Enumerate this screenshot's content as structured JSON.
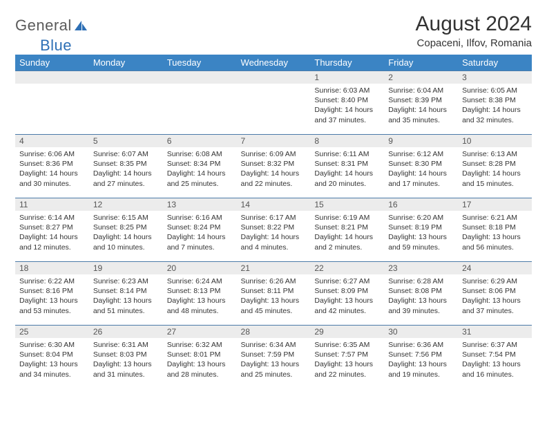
{
  "logo": {
    "general": "General",
    "blue": "Blue"
  },
  "title": "August 2024",
  "location": "Copaceni, Ilfov, Romania",
  "colors": {
    "header_bg": "#3b84c4",
    "header_text": "#ffffff",
    "daynum_bg": "#ececec",
    "row_border": "#4a7aa8",
    "text": "#333333",
    "logo_gray": "#5a5a5a",
    "logo_blue": "#2d6fb5"
  },
  "weekdays": [
    "Sunday",
    "Monday",
    "Tuesday",
    "Wednesday",
    "Thursday",
    "Friday",
    "Saturday"
  ],
  "weeks": [
    [
      null,
      null,
      null,
      null,
      {
        "d": "1",
        "sr": "Sunrise: 6:03 AM",
        "ss": "Sunset: 8:40 PM",
        "dl1": "Daylight: 14 hours",
        "dl2": "and 37 minutes."
      },
      {
        "d": "2",
        "sr": "Sunrise: 6:04 AM",
        "ss": "Sunset: 8:39 PM",
        "dl1": "Daylight: 14 hours",
        "dl2": "and 35 minutes."
      },
      {
        "d": "3",
        "sr": "Sunrise: 6:05 AM",
        "ss": "Sunset: 8:38 PM",
        "dl1": "Daylight: 14 hours",
        "dl2": "and 32 minutes."
      }
    ],
    [
      {
        "d": "4",
        "sr": "Sunrise: 6:06 AM",
        "ss": "Sunset: 8:36 PM",
        "dl1": "Daylight: 14 hours",
        "dl2": "and 30 minutes."
      },
      {
        "d": "5",
        "sr": "Sunrise: 6:07 AM",
        "ss": "Sunset: 8:35 PM",
        "dl1": "Daylight: 14 hours",
        "dl2": "and 27 minutes."
      },
      {
        "d": "6",
        "sr": "Sunrise: 6:08 AM",
        "ss": "Sunset: 8:34 PM",
        "dl1": "Daylight: 14 hours",
        "dl2": "and 25 minutes."
      },
      {
        "d": "7",
        "sr": "Sunrise: 6:09 AM",
        "ss": "Sunset: 8:32 PM",
        "dl1": "Daylight: 14 hours",
        "dl2": "and 22 minutes."
      },
      {
        "d": "8",
        "sr": "Sunrise: 6:11 AM",
        "ss": "Sunset: 8:31 PM",
        "dl1": "Daylight: 14 hours",
        "dl2": "and 20 minutes."
      },
      {
        "d": "9",
        "sr": "Sunrise: 6:12 AM",
        "ss": "Sunset: 8:30 PM",
        "dl1": "Daylight: 14 hours",
        "dl2": "and 17 minutes."
      },
      {
        "d": "10",
        "sr": "Sunrise: 6:13 AM",
        "ss": "Sunset: 8:28 PM",
        "dl1": "Daylight: 14 hours",
        "dl2": "and 15 minutes."
      }
    ],
    [
      {
        "d": "11",
        "sr": "Sunrise: 6:14 AM",
        "ss": "Sunset: 8:27 PM",
        "dl1": "Daylight: 14 hours",
        "dl2": "and 12 minutes."
      },
      {
        "d": "12",
        "sr": "Sunrise: 6:15 AM",
        "ss": "Sunset: 8:25 PM",
        "dl1": "Daylight: 14 hours",
        "dl2": "and 10 minutes."
      },
      {
        "d": "13",
        "sr": "Sunrise: 6:16 AM",
        "ss": "Sunset: 8:24 PM",
        "dl1": "Daylight: 14 hours",
        "dl2": "and 7 minutes."
      },
      {
        "d": "14",
        "sr": "Sunrise: 6:17 AM",
        "ss": "Sunset: 8:22 PM",
        "dl1": "Daylight: 14 hours",
        "dl2": "and 4 minutes."
      },
      {
        "d": "15",
        "sr": "Sunrise: 6:19 AM",
        "ss": "Sunset: 8:21 PM",
        "dl1": "Daylight: 14 hours",
        "dl2": "and 2 minutes."
      },
      {
        "d": "16",
        "sr": "Sunrise: 6:20 AM",
        "ss": "Sunset: 8:19 PM",
        "dl1": "Daylight: 13 hours",
        "dl2": "and 59 minutes."
      },
      {
        "d": "17",
        "sr": "Sunrise: 6:21 AM",
        "ss": "Sunset: 8:18 PM",
        "dl1": "Daylight: 13 hours",
        "dl2": "and 56 minutes."
      }
    ],
    [
      {
        "d": "18",
        "sr": "Sunrise: 6:22 AM",
        "ss": "Sunset: 8:16 PM",
        "dl1": "Daylight: 13 hours",
        "dl2": "and 53 minutes."
      },
      {
        "d": "19",
        "sr": "Sunrise: 6:23 AM",
        "ss": "Sunset: 8:14 PM",
        "dl1": "Daylight: 13 hours",
        "dl2": "and 51 minutes."
      },
      {
        "d": "20",
        "sr": "Sunrise: 6:24 AM",
        "ss": "Sunset: 8:13 PM",
        "dl1": "Daylight: 13 hours",
        "dl2": "and 48 minutes."
      },
      {
        "d": "21",
        "sr": "Sunrise: 6:26 AM",
        "ss": "Sunset: 8:11 PM",
        "dl1": "Daylight: 13 hours",
        "dl2": "and 45 minutes."
      },
      {
        "d": "22",
        "sr": "Sunrise: 6:27 AM",
        "ss": "Sunset: 8:09 PM",
        "dl1": "Daylight: 13 hours",
        "dl2": "and 42 minutes."
      },
      {
        "d": "23",
        "sr": "Sunrise: 6:28 AM",
        "ss": "Sunset: 8:08 PM",
        "dl1": "Daylight: 13 hours",
        "dl2": "and 39 minutes."
      },
      {
        "d": "24",
        "sr": "Sunrise: 6:29 AM",
        "ss": "Sunset: 8:06 PM",
        "dl1": "Daylight: 13 hours",
        "dl2": "and 37 minutes."
      }
    ],
    [
      {
        "d": "25",
        "sr": "Sunrise: 6:30 AM",
        "ss": "Sunset: 8:04 PM",
        "dl1": "Daylight: 13 hours",
        "dl2": "and 34 minutes."
      },
      {
        "d": "26",
        "sr": "Sunrise: 6:31 AM",
        "ss": "Sunset: 8:03 PM",
        "dl1": "Daylight: 13 hours",
        "dl2": "and 31 minutes."
      },
      {
        "d": "27",
        "sr": "Sunrise: 6:32 AM",
        "ss": "Sunset: 8:01 PM",
        "dl1": "Daylight: 13 hours",
        "dl2": "and 28 minutes."
      },
      {
        "d": "28",
        "sr": "Sunrise: 6:34 AM",
        "ss": "Sunset: 7:59 PM",
        "dl1": "Daylight: 13 hours",
        "dl2": "and 25 minutes."
      },
      {
        "d": "29",
        "sr": "Sunrise: 6:35 AM",
        "ss": "Sunset: 7:57 PM",
        "dl1": "Daylight: 13 hours",
        "dl2": "and 22 minutes."
      },
      {
        "d": "30",
        "sr": "Sunrise: 6:36 AM",
        "ss": "Sunset: 7:56 PM",
        "dl1": "Daylight: 13 hours",
        "dl2": "and 19 minutes."
      },
      {
        "d": "31",
        "sr": "Sunrise: 6:37 AM",
        "ss": "Sunset: 7:54 PM",
        "dl1": "Daylight: 13 hours",
        "dl2": "and 16 minutes."
      }
    ]
  ]
}
